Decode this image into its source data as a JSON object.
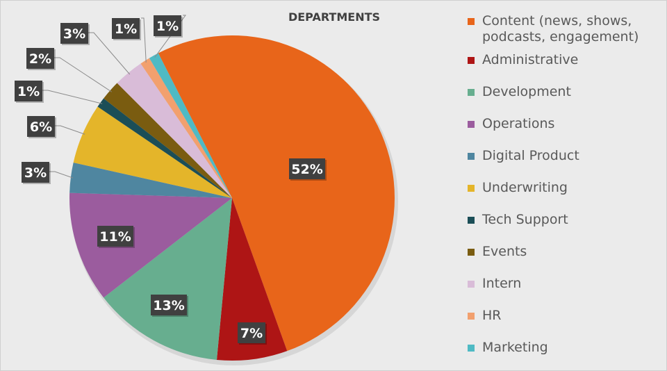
{
  "chart_data": {
    "type": "pie",
    "title": "DEPARTMENTS",
    "legend_position": "right",
    "slices": [
      {
        "label": "Content (news, shows, podcasts, engagement)",
        "value": 52,
        "data_label": "52%",
        "color": "#E8651A"
      },
      {
        "label": "Administrative",
        "value": 7,
        "data_label": "7%",
        "color": "#AE1515"
      },
      {
        "label": "Development",
        "value": 13,
        "data_label": "13%",
        "color": "#67AE8F"
      },
      {
        "label": "Operations",
        "value": 11,
        "data_label": "11%",
        "color": "#9B5C9E"
      },
      {
        "label": "Digital Product",
        "value": 3,
        "data_label": "3%",
        "color": "#4F86A0"
      },
      {
        "label": "Underwriting",
        "value": 6,
        "data_label": "6%",
        "color": "#E4B52A"
      },
      {
        "label": "Tech Support",
        "value": 1,
        "data_label": "1%",
        "color": "#1B4E57"
      },
      {
        "label": "Events",
        "value": 2,
        "data_label": "2%",
        "color": "#7A5C10"
      },
      {
        "label": "Intern",
        "value": 3,
        "data_label": "3%",
        "color": "#D9BCD8"
      },
      {
        "label": "HR",
        "value": 1,
        "data_label": "1%",
        "color": "#F2A06E"
      },
      {
        "label": "Marketing",
        "value": 1,
        "data_label": "1%",
        "color": "#4FBAC4"
      }
    ]
  }
}
